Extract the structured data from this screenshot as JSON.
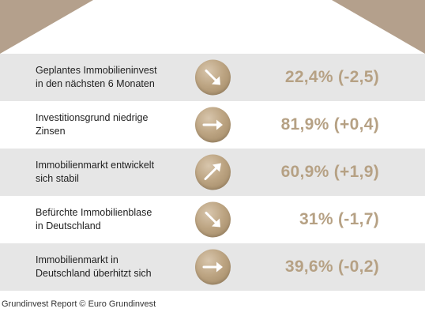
{
  "colors": {
    "accent": "#b6a184",
    "roof": "#b4a08c",
    "row_shade": "#e6e6e6",
    "text": "#1f1f1f"
  },
  "rows": [
    {
      "label_line1": "Geplantes Immobilieninvest",
      "label_line2": "in den nächsten 6 Monaten",
      "value": "22,4% (-2,5)",
      "icon": "arrow-down-right-icon"
    },
    {
      "label_line1": "Investitionsgrund niedrige",
      "label_line2": "Zinsen",
      "value": "81,9% (+0,4)",
      "icon": "arrow-right-icon"
    },
    {
      "label_line1": "Immobilienmarkt entwickelt",
      "label_line2": "sich stabil",
      "value": "60,9% (+1,9)",
      "icon": "arrow-up-right-icon"
    },
    {
      "label_line1": "Befürchte Immobilienblase",
      "label_line2": "in Deutschland",
      "value": "31% (-1,7)",
      "icon": "arrow-down-right-icon"
    },
    {
      "label_line1": "Immobilienmarkt in",
      "label_line2": "Deutschland überhitzt sich",
      "value": "39,6% (-0,2)",
      "icon": "arrow-right-icon"
    }
  ],
  "footer": {
    "source": "Grundinvest Report © Euro Grundinvest"
  }
}
